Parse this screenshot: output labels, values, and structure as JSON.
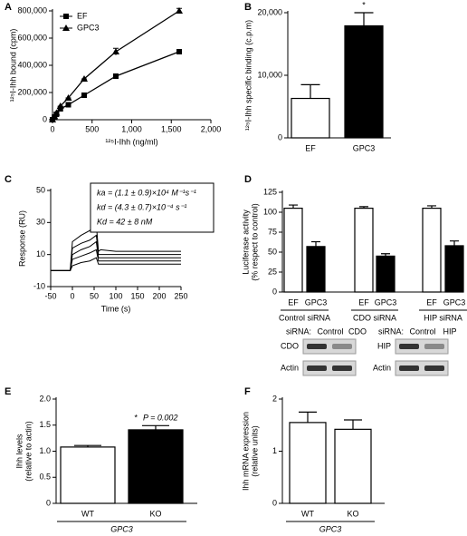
{
  "chart_data": [
    {
      "type": "line",
      "panel": "A",
      "xlabel": "¹²⁵I-Ihh (ng/ml)",
      "ylabel": "¹²⁵I-Ihh bound (cpm)",
      "xlim": [
        0,
        2000
      ],
      "xticks": [
        0,
        500,
        {
          "value": 1000,
          "label": "1,000"
        },
        {
          "value": 1500,
          "label": "1,500"
        },
        {
          "value": 2000,
          "label": "2,000"
        }
      ],
      "ylim": [
        0,
        800000
      ],
      "yticks": [
        0,
        {
          "value": 200000,
          "label": "200,000"
        },
        {
          "value": 400000,
          "label": "400,000"
        },
        {
          "value": 600000,
          "label": "600,000"
        },
        {
          "value": 800000,
          "label": "800,000"
        }
      ],
      "x": [
        0,
        25,
        50,
        100,
        200,
        400,
        800,
        1600
      ],
      "series": [
        {
          "name": "EF",
          "color": "#000000",
          "marker": "square",
          "values": [
            0,
            20000,
            40000,
            80000,
            110000,
            180000,
            320000,
            500000
          ]
        },
        {
          "name": "GPC3",
          "color": "#000000",
          "marker": "triangle",
          "values": [
            0,
            25000,
            50000,
            100000,
            160000,
            300000,
            500000,
            800000
          ],
          "errors": [
            0,
            0,
            0,
            0,
            0,
            0,
            25000,
            18000
          ]
        }
      ],
      "legend": "upper left"
    },
    {
      "type": "bar",
      "panel": "B",
      "ylabel": "¹²⁵I-Ihh specific binding (c.p.m)",
      "categories": [
        "EF",
        "GPC3"
      ],
      "values": [
        6300,
        17900
      ],
      "errors": [
        2200,
        2100
      ],
      "colors": [
        "#ffffff",
        "#000000"
      ],
      "ylim": [
        0,
        20000
      ],
      "yticks": [
        0,
        {
          "value": 10000,
          "label": "10,000"
        },
        {
          "value": 20000,
          "label": "20,000"
        }
      ],
      "annotations": [
        "*"
      ]
    },
    {
      "type": "line",
      "panel": "C",
      "xlabel": "Time (s)",
      "ylabel": "Response (RU)",
      "xlim": [
        -50,
        250
      ],
      "xticks": [
        -50,
        0,
        50,
        100,
        150,
        200,
        250
      ],
      "ylim": [
        -10,
        50
      ],
      "yticks": [
        -10,
        10,
        30,
        50
      ],
      "x": [
        -50,
        -5,
        0,
        20,
        40,
        55,
        60,
        65,
        100,
        250
      ],
      "series": [
        {
          "color": "#000000",
          "values": [
            0,
            0,
            18,
            22,
            25,
            29,
            12,
            13,
            12,
            12
          ]
        },
        {
          "color": "#000000",
          "values": [
            0,
            0,
            14,
            17,
            19,
            22,
            10,
            10,
            10,
            10
          ]
        },
        {
          "color": "#000000",
          "values": [
            0,
            0,
            10,
            13,
            15,
            18,
            8,
            8,
            8,
            8
          ]
        },
        {
          "color": "#000000",
          "values": [
            0,
            0,
            7,
            9,
            11,
            13,
            6,
            6,
            6,
            6
          ]
        },
        {
          "color": "#000000",
          "values": [
            0,
            0,
            3,
            5,
            6,
            8,
            4,
            4,
            4,
            4
          ]
        }
      ],
      "annotations": [
        "ka = (1.1 ± 0.9)×10⁴ M⁻¹s⁻¹",
        "kd = (4.3 ± 0.7)×10⁻⁴ s⁻¹",
        "Kd = 42 ± 8 nM"
      ]
    },
    {
      "type": "bar",
      "panel": "D",
      "ylabel": [
        "Luciferase activity",
        "(% respect to control)"
      ],
      "categories": [
        "EF",
        "GPC3",
        "EF",
        "GPC3",
        "EF",
        "GPC3"
      ],
      "groups": [
        "Control siRNA",
        "CDO siRNA",
        "HIP siRNA"
      ],
      "values": [
        105,
        57,
        105,
        45,
        105,
        58
      ],
      "errors": [
        4,
        6,
        2,
        3,
        3,
        6
      ],
      "colors": [
        "#ffffff",
        "#000000",
        "#ffffff",
        "#000000",
        "#ffffff",
        "#000000"
      ],
      "ylim": [
        0,
        125
      ],
      "yticks": [
        0,
        25,
        50,
        75,
        100,
        125
      ],
      "blots": [
        {
          "header": "siRNA:",
          "lanes": [
            "Control",
            "CDO"
          ],
          "rows": [
            "CDO",
            "Actin"
          ]
        },
        {
          "header": "siRNA:",
          "lanes": [
            "Control",
            "HIP"
          ],
          "rows": [
            "HIP",
            "Actin"
          ]
        }
      ]
    },
    {
      "type": "bar",
      "panel": "E",
      "ylabel": [
        "Ihh levels",
        "(relative to actin)"
      ],
      "categories": [
        "WT",
        "KO"
      ],
      "groups": [
        "GPC3"
      ],
      "values": [
        1.08,
        1.41
      ],
      "errors": [
        0.03,
        0.08
      ],
      "colors": [
        "#ffffff",
        "#000000"
      ],
      "ylim": [
        0,
        2.0
      ],
      "yticks": [
        0,
        0.5,
        {
          "value": 1.0,
          "label": "1.0"
        },
        1.5,
        {
          "value": 2.0,
          "label": "2.0"
        }
      ],
      "annotations": [
        "*",
        "P = 0.002"
      ]
    },
    {
      "type": "bar",
      "panel": "F",
      "ylabel": [
        "Ihh mRNA expression",
        "(relative units)"
      ],
      "categories": [
        "WT",
        "KO"
      ],
      "groups": [
        "GPC3"
      ],
      "values": [
        1.55,
        1.42
      ],
      "errors": [
        0.2,
        0.18
      ],
      "colors": [
        "#ffffff",
        "#ffffff"
      ],
      "ylim": [
        0,
        2
      ],
      "yticks": [
        0,
        1,
        2
      ]
    }
  ]
}
